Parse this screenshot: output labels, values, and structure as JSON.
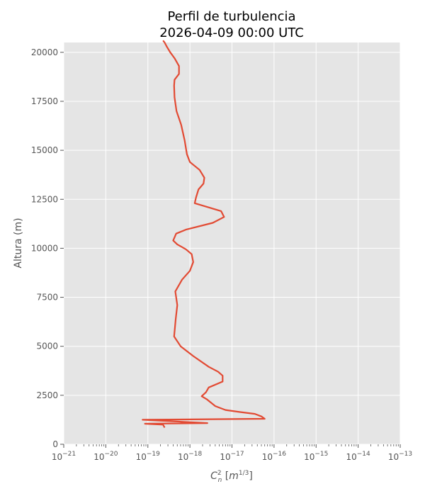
{
  "chart_data": {
    "type": "line",
    "title": "Perfil de turbulencia",
    "subtitle": "2026-04-09 00:00 UTC",
    "xlabel": "C_n^2 [m^{1/3}]",
    "ylabel": "Altura (m)",
    "x_scale": "log",
    "xlim": [
      1e-21,
      1e-13
    ],
    "ylim": [
      0,
      20500
    ],
    "grid": true,
    "x_ticks": [
      {
        "exp": -21,
        "label": "10",
        "sup": "−21"
      },
      {
        "exp": -20,
        "label": "10",
        "sup": "−20"
      },
      {
        "exp": -19,
        "label": "10",
        "sup": "−19"
      },
      {
        "exp": -18,
        "label": "10",
        "sup": "−18"
      },
      {
        "exp": -17,
        "label": "10",
        "sup": "−17"
      },
      {
        "exp": -16,
        "label": "10",
        "sup": "−16"
      },
      {
        "exp": -15,
        "label": "10",
        "sup": "−15"
      },
      {
        "exp": -14,
        "label": "10",
        "sup": "−14"
      },
      {
        "exp": -13,
        "label": "10",
        "sup": "−13"
      }
    ],
    "y_ticks": [
      {
        "value": 0,
        "label": "0"
      },
      {
        "value": 2500,
        "label": "2500"
      },
      {
        "value": 5000,
        "label": "5000"
      },
      {
        "value": 7500,
        "label": "7500"
      },
      {
        "value": 10000,
        "label": "10000"
      },
      {
        "value": 12500,
        "label": "12500"
      },
      {
        "value": 15000,
        "label": "15000"
      },
      {
        "value": 17500,
        "label": "17500"
      },
      {
        "value": 20000,
        "label": "20000"
      }
    ],
    "series": [
      {
        "color": "#e24a33",
        "x": [
          2.5e-19,
          2.3e-19,
          8.5e-20,
          2.6e-18,
          7.5e-20,
          6e-17,
          5e-17,
          3.5e-17,
          1.5e-17,
          7e-18,
          4e-18,
          2.5e-18,
          1.9e-18,
          2.4e-18,
          2.8e-18,
          6e-18,
          6e-18,
          4.7e-18,
          2.8e-18,
          1.2e-18,
          6e-19,
          4.2e-19,
          4.6e-19,
          5e-19,
          4.5e-19,
          6.5e-19,
          1e-18,
          1.2e-18,
          1.1e-18,
          8e-19,
          5e-19,
          4e-19,
          4.7e-19,
          8e-19,
          3.5e-18,
          6.5e-18,
          5.5e-18,
          1.3e-18,
          1.4e-18,
          1.6e-18,
          2.1e-18,
          2.2e-18,
          1.7e-18,
          1e-18,
          8.5e-19,
          7.5e-19,
          6.2e-19,
          4.8e-19,
          4.3e-19,
          4.2e-19,
          4.3e-19,
          5.5e-19,
          5.5e-19,
          4.3e-19,
          3.4e-19,
          2.8e-19,
          2.5e-19,
          2.3e-19
        ],
        "y": [
          850,
          1000,
          1050,
          1080,
          1250,
          1300,
          1420,
          1550,
          1650,
          1750,
          1950,
          2300,
          2450,
          2650,
          2900,
          3200,
          3500,
          3700,
          3950,
          4500,
          5000,
          5500,
          6400,
          7100,
          7800,
          8400,
          8850,
          9300,
          9700,
          9950,
          10200,
          10400,
          10750,
          10950,
          11300,
          11600,
          11900,
          12300,
          12600,
          13000,
          13300,
          13600,
          14000,
          14400,
          14800,
          15500,
          16300,
          17000,
          17700,
          18300,
          18600,
          18900,
          19300,
          19700,
          20000,
          20300,
          20500,
          20600
        ]
      }
    ]
  }
}
